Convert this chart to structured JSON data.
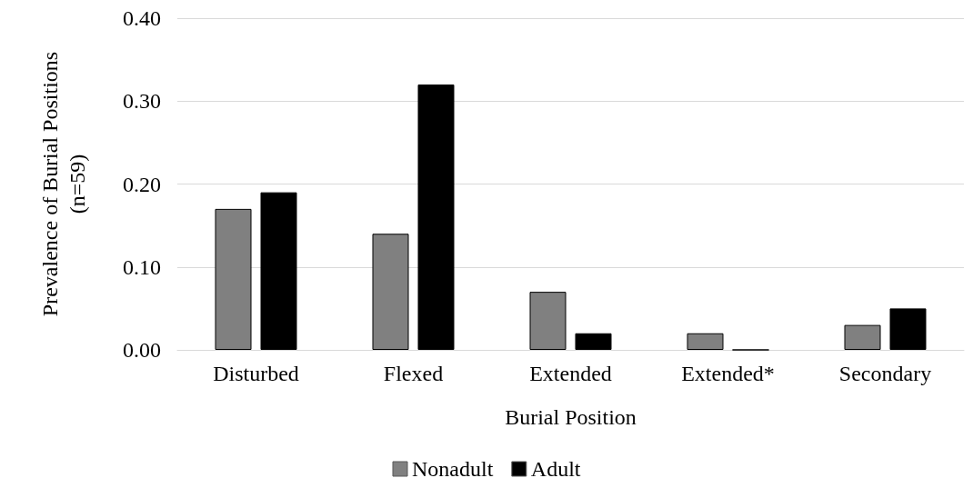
{
  "chart_data": {
    "type": "bar",
    "xlabel": "Burial Position",
    "ylabel": "Prevalence of Burial Positions\n(n=59)",
    "categories": [
      "Disturbed",
      "Flexed",
      "Extended",
      "Extended*",
      "Secondary"
    ],
    "series": [
      {
        "name": "Nonadult",
        "color": "#808080",
        "values": [
          0.17,
          0.14,
          0.07,
          0.02,
          0.03
        ]
      },
      {
        "name": "Adult",
        "color": "#000000",
        "values": [
          0.19,
          0.32,
          0.02,
          0,
          0.05
        ]
      }
    ],
    "ylim": [
      0,
      0.4
    ],
    "yticks": [
      {
        "value": 0,
        "label": "0.00"
      },
      {
        "value": 0.1,
        "label": "0.10"
      },
      {
        "value": 0.2,
        "label": "0.20"
      },
      {
        "value": 0.3,
        "label": "0.30"
      },
      {
        "value": 0.4,
        "label": "0.40"
      }
    ],
    "grid": "y",
    "legend": "bottom"
  }
}
